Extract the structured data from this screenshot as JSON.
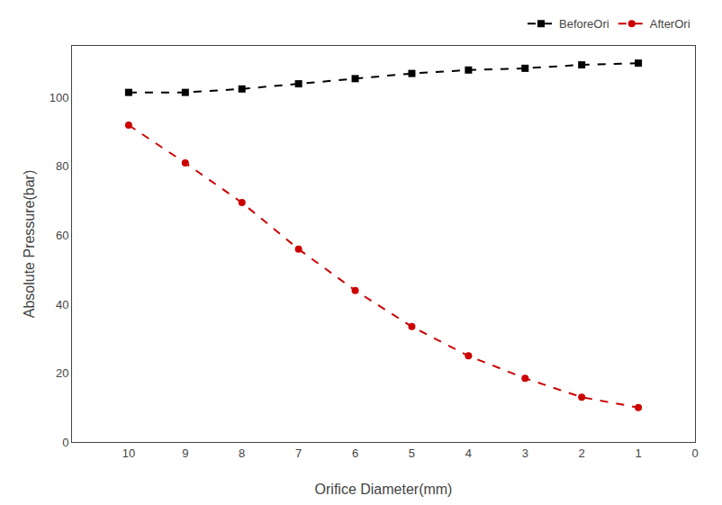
{
  "chart_data": {
    "type": "line",
    "xlabel": "Orifice Diameter(mm)",
    "ylabel": "Absolute Pressure(bar)",
    "x": [
      10,
      9,
      8,
      7,
      6,
      5,
      4,
      3,
      2,
      1
    ],
    "series": [
      {
        "name": "BeforeOri",
        "color": "#000000",
        "marker": "square",
        "line_style": "dashed",
        "values": [
          101.5,
          101.5,
          102.5,
          104.0,
          105.5,
          107.0,
          108.0,
          108.5,
          109.5,
          110.0
        ]
      },
      {
        "name": "AfterOri",
        "color": "#cc0000",
        "marker": "circle",
        "line_style": "dashed",
        "values": [
          92.0,
          81.0,
          69.5,
          56.0,
          44.0,
          33.5,
          25.0,
          18.5,
          13.0,
          10.0
        ]
      }
    ],
    "xlim": [
      11,
      0
    ],
    "xticks": [
      10,
      9,
      8,
      7,
      6,
      5,
      4,
      3,
      2,
      1,
      0
    ],
    "ylim": [
      0,
      115
    ],
    "yticks": [
      0,
      20,
      40,
      60,
      80,
      100
    ],
    "grid": false,
    "legend": "upper right"
  }
}
